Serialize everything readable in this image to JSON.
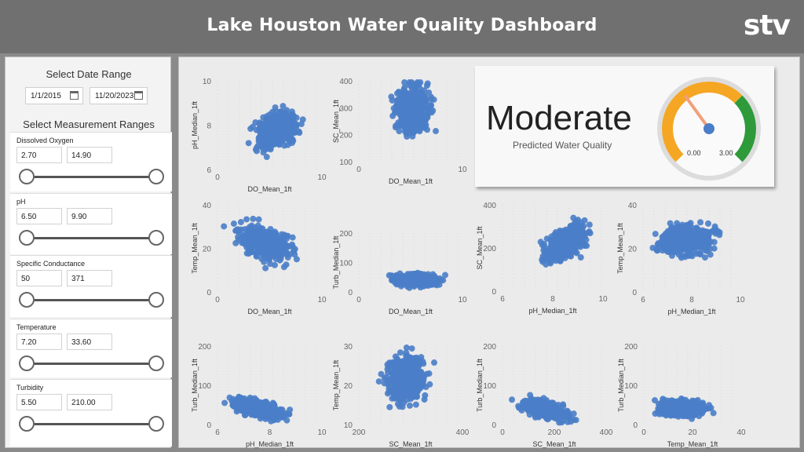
{
  "header": {
    "title": "Lake Houston Water Quality Dashboard",
    "logo": "stv"
  },
  "filters": {
    "date_title": "Select Date Range",
    "start_date": "1/1/2015",
    "end_date": "11/20/2023",
    "measure_title": "Select Measurement Ranges",
    "slicers": [
      {
        "label": "Dissolved Oxygen",
        "min": "2.70",
        "max": "14.90"
      },
      {
        "label": "pH",
        "min": "6.50",
        "max": "9.90"
      },
      {
        "label": "Specific Conductance",
        "min": "50",
        "max": "371"
      },
      {
        "label": "Temperature",
        "min": "7.20",
        "max": "33.60"
      },
      {
        "label": "Turbidity",
        "min": "5.50",
        "max": "210.00"
      }
    ]
  },
  "gauge": {
    "label": "Moderate",
    "caption": "Predicted Water Quality",
    "min_label": "0.00",
    "max_label": "3.00",
    "value": 1.1,
    "colors": {
      "low": "#f5a623",
      "high": "#2e9a3a",
      "needle": "#f0a07a",
      "hub": "#4a7ec8"
    }
  },
  "colors": {
    "points": "#4a7ec8",
    "axis_text": "#666666"
  },
  "chart_data": [
    {
      "type": "scatter",
      "xlabel": "DO_Mean_1ft",
      "ylabel": "pH_Median_1ft",
      "xticks": [
        "0",
        "10"
      ],
      "yticks": [
        "6",
        "8",
        "10"
      ]
    },
    {
      "type": "scatter",
      "xlabel": "DO_Mean_1ft",
      "ylabel": "SC_Mean_1ft",
      "xticks": [
        "0",
        "10"
      ],
      "yticks": [
        "100",
        "200",
        "300",
        "400"
      ]
    },
    {
      "type": "scatter",
      "xlabel": "DO_Mean_1ft",
      "ylabel": "Temp_Mean_1ft",
      "xticks": [
        "0",
        "10"
      ],
      "yticks": [
        "0",
        "20",
        "40"
      ]
    },
    {
      "type": "scatter",
      "xlabel": "DO_Mean_1ft",
      "ylabel": "Turb_Median_1ft",
      "xticks": [
        "0",
        "10"
      ],
      "yticks": [
        "0",
        "100",
        "200"
      ]
    },
    {
      "type": "scatter",
      "xlabel": "pH_Median_1ft",
      "ylabel": "SC_Mean_1ft",
      "xticks": [
        "6",
        "8",
        "10"
      ],
      "yticks": [
        "0",
        "200",
        "400"
      ]
    },
    {
      "type": "scatter",
      "xlabel": "pH_Median_1ft",
      "ylabel": "Temp_Mean_1ft",
      "xticks": [
        "6",
        "8",
        "10"
      ],
      "yticks": [
        "0",
        "20",
        "40"
      ]
    },
    {
      "type": "scatter",
      "xlabel": "pH_Median_1ft",
      "ylabel": "Turb_Median_1ft",
      "xticks": [
        "6",
        "8",
        "10"
      ],
      "yticks": [
        "0",
        "100",
        "200"
      ]
    },
    {
      "type": "scatter",
      "xlabel": "SC_Mean_1ft",
      "ylabel": "Temp_Mean_1ft",
      "xticks": [
        "200",
        "400"
      ],
      "yticks": [
        "10",
        "20",
        "30"
      ]
    },
    {
      "type": "scatter",
      "xlabel": "SC_Mean_1ft",
      "ylabel": "Turb_Median_1ft",
      "xticks": [
        "0",
        "200",
        "400"
      ],
      "yticks": [
        "0",
        "100",
        "200"
      ]
    },
    {
      "type": "scatter",
      "xlabel": "Temp_Mean_1ft",
      "ylabel": "Turb_Median_1ft",
      "xticks": [
        "0",
        "20",
        "40"
      ],
      "yticks": [
        "0",
        "100",
        "200"
      ]
    }
  ]
}
